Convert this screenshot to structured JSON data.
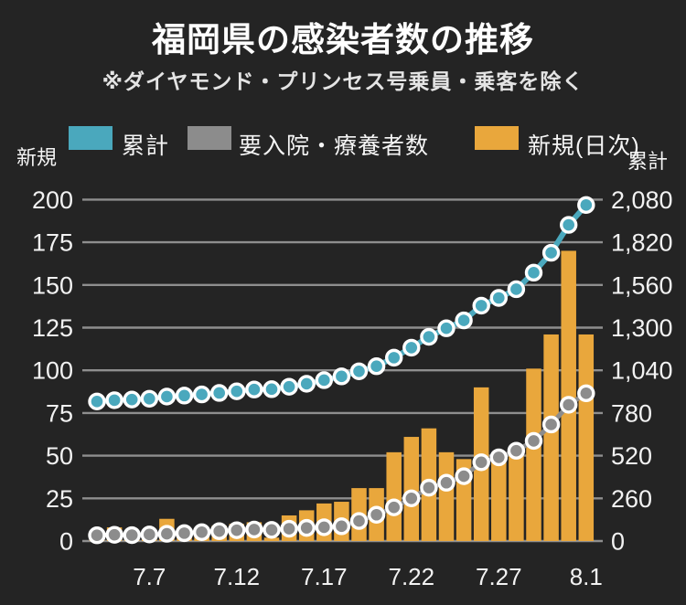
{
  "page": {
    "background": "#242424"
  },
  "header": {
    "title": "福岡県の感染者数の推移",
    "subtitle": "※ダイヤモンド・プリンセス号乗員・乗客を除く"
  },
  "legend": {
    "items": [
      {
        "label": "累計",
        "color": "#4AA8BD"
      },
      {
        "label": "要入院・療養者数",
        "color": "#8C8C8C"
      },
      {
        "label": "新規(日次)",
        "color": "#E9A73C"
      }
    ]
  },
  "chart_data": {
    "type": "combo",
    "title": "福岡県の感染者数の推移",
    "grid": true,
    "x": [
      "7.4",
      "7.5",
      "7.6",
      "7.7",
      "7.8",
      "7.9",
      "7.10",
      "7.11",
      "7.12",
      "7.13",
      "7.14",
      "7.15",
      "7.16",
      "7.17",
      "7.18",
      "7.19",
      "7.20",
      "7.21",
      "7.22",
      "7.23",
      "7.24",
      "7.25",
      "7.26",
      "7.27",
      "7.28",
      "7.29",
      "7.30",
      "7.31",
      "8.1"
    ],
    "x_tick_labels": [
      {
        "index": 3,
        "label": "7.7"
      },
      {
        "index": 8,
        "label": "7.12"
      },
      {
        "index": 13,
        "label": "7.17"
      },
      {
        "index": 18,
        "label": "7.22"
      },
      {
        "index": 23,
        "label": "7.27"
      },
      {
        "index": 28,
        "label": "8.1"
      }
    ],
    "left_axis": {
      "label": "新規",
      "max": 200,
      "ticks": [
        0,
        25,
        50,
        75,
        100,
        125,
        150,
        175,
        200
      ],
      "tick_labels": [
        "0",
        "25",
        "50",
        "75",
        "100",
        "125",
        "150",
        "175",
        "200"
      ]
    },
    "right_axis": {
      "label": "累計",
      "max": 2080,
      "tick_labels": [
        "0",
        "260",
        "520",
        "780",
        "1,040",
        "1,300",
        "1,560",
        "1,820",
        "2,080"
      ]
    },
    "series": [
      {
        "name": "新規(日次)",
        "type": "bar",
        "axis": "left",
        "color": "#E9A73C",
        "values": [
          4,
          8,
          4,
          5,
          13,
          6,
          7,
          9,
          10,
          11,
          2,
          15,
          18,
          22,
          23,
          31,
          31,
          52,
          61,
          66,
          52,
          48,
          90,
          47,
          53,
          101,
          121,
          170,
          121
        ]
      },
      {
        "name": "要入院・療養者数",
        "type": "line",
        "axis": "right",
        "color": "#8C8C8C",
        "values": [
          35,
          38,
          36,
          40,
          44,
          48,
          54,
          60,
          66,
          70,
          68,
          75,
          80,
          84,
          90,
          122,
          160,
          205,
          260,
          325,
          355,
          395,
          480,
          510,
          550,
          610,
          710,
          830,
          900
        ]
      },
      {
        "name": "累計",
        "type": "line",
        "axis": "right",
        "color": "#4AA8BD",
        "values": [
          850,
          858,
          862,
          867,
          880,
          886,
          893,
          902,
          912,
          923,
          925,
          940,
          958,
          980,
          1003,
          1034,
          1065,
          1117,
          1178,
          1244,
          1296,
          1344,
          1434,
          1481,
          1534,
          1635,
          1756,
          1926,
          2047
        ]
      }
    ],
    "style": {
      "gridline_color": "#8e8e8e",
      "axis_text_color": "#f2f2f2",
      "point_ring_color": "#ffffff"
    }
  }
}
